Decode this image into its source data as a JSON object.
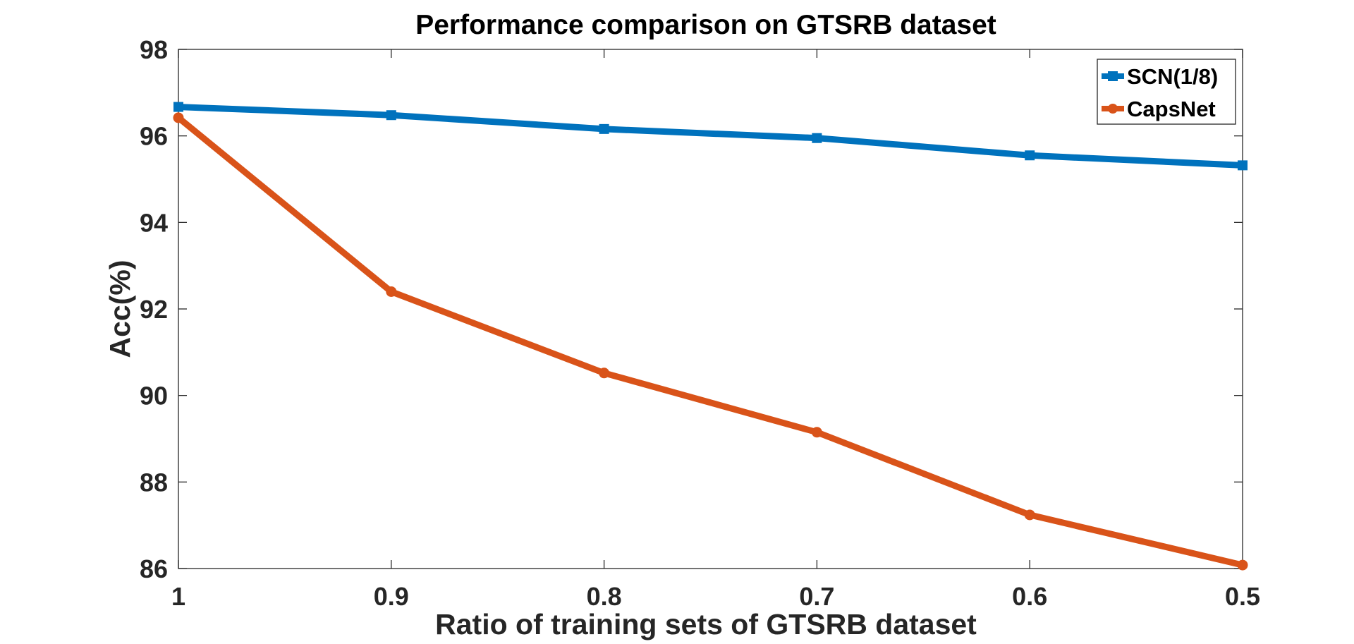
{
  "chart_data": {
    "type": "line",
    "title": "Performance comparison on GTSRB dataset",
    "xlabel": "Ratio of training sets of GTSRB dataset",
    "ylabel": "Acc(%)",
    "x": [
      1,
      0.9,
      0.8,
      0.7,
      0.6,
      0.5
    ],
    "x_tick_labels": [
      "1",
      "0.9",
      "0.8",
      "0.7",
      "0.6",
      "0.5"
    ],
    "xlim": [
      1,
      0.5
    ],
    "x_reversed": true,
    "ylim": [
      86,
      98
    ],
    "y_ticks": [
      86,
      88,
      90,
      92,
      94,
      96,
      98
    ],
    "grid": false,
    "legend_position": "top-right",
    "series": [
      {
        "name": "SCN(1/8)",
        "color": "#0072BD",
        "marker": "square",
        "values": [
          96.67,
          96.48,
          96.16,
          95.95,
          95.55,
          95.32
        ]
      },
      {
        "name": "CapsNet",
        "color": "#D95319",
        "marker": "circle",
        "values": [
          96.42,
          92.4,
          90.52,
          89.15,
          87.24,
          86.08
        ]
      }
    ]
  }
}
